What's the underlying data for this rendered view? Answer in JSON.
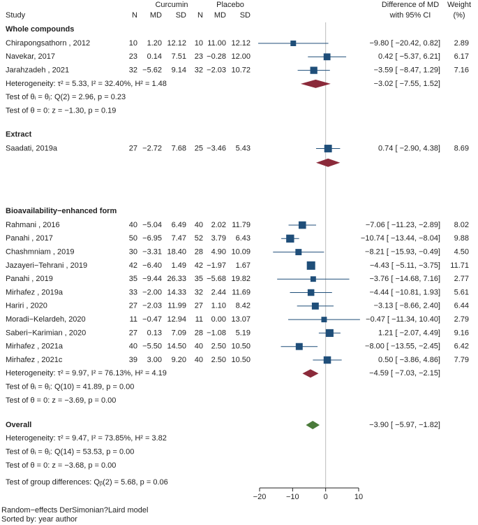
{
  "chart_data": {
    "type": "forest",
    "columns": {
      "study": "Study",
      "group1": "Curcumin",
      "group2": "Placebo",
      "n": "N",
      "md": "MD",
      "sd": "SD",
      "effect_header_1": "Difference of MD",
      "effect_header_2": "with 95% CI",
      "weight_header_1": "Weight",
      "weight_header_2": "(%)"
    },
    "axis": {
      "xlim": [
        -20,
        10
      ],
      "ticks": [
        -20,
        -10,
        0,
        10
      ],
      "tick_labels": [
        "−20",
        "−10",
        "0",
        "10"
      ],
      "null_line": 0
    },
    "colors": {
      "study": "#1f4e79",
      "subgroup": "#8b2a3a",
      "overall": "#4a7a3a",
      "ci": "#1f4e79",
      "null_line": "#bbbbbb"
    },
    "groups": [
      {
        "name": "Whole compounds",
        "studies": [
          {
            "name": "Chirapongsathorn , 2012",
            "n1": "10",
            "md1": "1.20",
            "sd1": "12.12",
            "n2": "10",
            "md2": "11.00",
            "sd2": "12.12",
            "effect": -9.8,
            "lo": -20.42,
            "hi": 0.82,
            "ci_text": "−9.80 [ −20.42,   0.82]",
            "weight": 2.89,
            "weight_text": "2.89"
          },
          {
            "name": "Navekar, 2017",
            "n1": "23",
            "md1": "0.14",
            "sd1": "7.51",
            "n2": "23",
            "md2": "−0.28",
            "sd2": "12.00",
            "effect": 0.42,
            "lo": -5.37,
            "hi": 6.21,
            "ci_text": "0.42 [  −5.37,   6.21]",
            "weight": 6.17,
            "weight_text": "6.17"
          },
          {
            "name": "Jarahzadeh , 2021",
            "n1": "32",
            "md1": "−5.62",
            "sd1": "9.14",
            "n2": "32",
            "md2": "−2.03",
            "sd2": "10.72",
            "effect": -3.59,
            "lo": -8.47,
            "hi": 1.29,
            "ci_text": "−3.59 [  −8.47,   1.29]",
            "weight": 7.16,
            "weight_text": "7.16"
          }
        ],
        "heterogeneity": {
          "label": "Heterogeneity: τ² = 5.33, I² = 32.40%, H² = 1.48",
          "effect": -3.02,
          "lo": -7.55,
          "hi": 1.52,
          "ci_text": "−3.02 [  −7.55,   1.52]"
        },
        "test_q": "Test of θᵢ = θⱼ: Q(2) = 2.96, p = 0.23",
        "test_z": "Test of θ = 0: z = −1.30, p = 0.19"
      },
      {
        "name": "Extract",
        "studies": [
          {
            "name": "Saadati,  2019a",
            "n1": "27",
            "md1": "−2.72",
            "sd1": "7.68",
            "n2": "25",
            "md2": "−3.46",
            "sd2": "5.43",
            "effect": 0.74,
            "lo": -2.9,
            "hi": 4.38,
            "ci_text": "0.74 [  −2.90,   4.38]",
            "weight": 8.69,
            "weight_text": "8.69"
          }
        ],
        "summary": {
          "effect": 0.74,
          "lo": -2.9,
          "hi": 4.38
        }
      },
      {
        "name": "Bioavailability−enhanced form",
        "studies": [
          {
            "name": "Rahmani , 2016",
            "n1": "40",
            "md1": "−5.04",
            "sd1": "6.49",
            "n2": "40",
            "md2": "2.02",
            "sd2": "11.79",
            "effect": -7.06,
            "lo": -11.23,
            "hi": -2.89,
            "ci_text": "−7.06 [ −11.23,  −2.89]",
            "weight": 8.02,
            "weight_text": "8.02"
          },
          {
            "name": "Panahi , 2017",
            "n1": "50",
            "md1": "−6.95",
            "sd1": "7.47",
            "n2": "52",
            "md2": "3.79",
            "sd2": "6.43",
            "effect": -10.74,
            "lo": -13.44,
            "hi": -8.04,
            "ci_text": "−10.74 [ −13.44,  −8.04]",
            "weight": 9.88,
            "weight_text": "9.88"
          },
          {
            "name": "Chashmniam , 2019",
            "n1": "30",
            "md1": "−3.31",
            "sd1": "18.40",
            "n2": "28",
            "md2": "4.90",
            "sd2": "10.09",
            "effect": -8.21,
            "lo": -15.93,
            "hi": -0.49,
            "ci_text": "−8.21 [ −15.93,  −0.49]",
            "weight": 4.5,
            "weight_text": "4.50"
          },
          {
            "name": "Jazayeri−Tehrani , 2019",
            "n1": "42",
            "md1": "−6.40",
            "sd1": "1.49",
            "n2": "42",
            "md2": "−1.97",
            "sd2": "1.67",
            "effect": -4.43,
            "lo": -5.11,
            "hi": -3.75,
            "ci_text": "−4.43 [  −5.11,  −3.75]",
            "weight": 11.71,
            "weight_text": "11.71"
          },
          {
            "name": "Panahi , 2019",
            "n1": "35",
            "md1": "−9.44",
            "sd1": "26.33",
            "n2": "35",
            "md2": "−5.68",
            "sd2": "19.82",
            "effect": -3.76,
            "lo": -14.68,
            "hi": 7.16,
            "ci_text": "−3.76 [ −14.68,   7.16]",
            "weight": 2.77,
            "weight_text": "2.77"
          },
          {
            "name": "Mirhafez , 2019a",
            "n1": "33",
            "md1": "−2.00",
            "sd1": "14.33",
            "n2": "32",
            "md2": "2.44",
            "sd2": "11.69",
            "effect": -4.44,
            "lo": -10.81,
            "hi": 1.93,
            "ci_text": "−4.44 [ −10.81,   1.93]",
            "weight": 5.61,
            "weight_text": "5.61"
          },
          {
            "name": "Hariri , 2020",
            "n1": "27",
            "md1": "−2.03",
            "sd1": "11.99",
            "n2": "27",
            "md2": "1.10",
            "sd2": "8.42",
            "effect": -3.13,
            "lo": -8.66,
            "hi": 2.4,
            "ci_text": "−3.13 [  −8.66,   2.40]",
            "weight": 6.44,
            "weight_text": "6.44"
          },
          {
            "name": "Moradi−Kelardeh, 2020",
            "n1": "11",
            "md1": "−0.47",
            "sd1": "12.94",
            "n2": "11",
            "md2": "0.00",
            "sd2": "13.07",
            "effect": -0.47,
            "lo": -11.34,
            "hi": 10.4,
            "ci_text": "−0.47 [ −11.34,  10.40]",
            "weight": 2.79,
            "weight_text": "2.79"
          },
          {
            "name": "Saberi−Karimian , 2020",
            "n1": "27",
            "md1": "0.13",
            "sd1": "7.09",
            "n2": "28",
            "md2": "−1.08",
            "sd2": "5.19",
            "effect": 1.21,
            "lo": -2.07,
            "hi": 4.49,
            "ci_text": "1.21 [  −2.07,   4.49]",
            "weight": 9.16,
            "weight_text": "9.16"
          },
          {
            "name": "Mirhafez , 2021a",
            "n1": "40",
            "md1": "−5.50",
            "sd1": "14.50",
            "n2": "40",
            "md2": "2.50",
            "sd2": "10.50",
            "effect": -8.0,
            "lo": -13.55,
            "hi": -2.45,
            "ci_text": "−8.00 [ −13.55,  −2.45]",
            "weight": 6.42,
            "weight_text": "6.42"
          },
          {
            "name": "Mirhafez , 2021c",
            "n1": "39",
            "md1": "3.00",
            "sd1": "9.20",
            "n2": "40",
            "md2": "2.50",
            "sd2": "10.50",
            "effect": 0.5,
            "lo": -3.86,
            "hi": 4.86,
            "ci_text": "0.50 [  −3.86,   4.86]",
            "weight": 7.79,
            "weight_text": "7.79"
          }
        ],
        "heterogeneity": {
          "label": "Heterogeneity: τ² = 9.97, I² = 76.13%, H² = 4.19",
          "effect": -4.59,
          "lo": -7.03,
          "hi": -2.15,
          "ci_text": "−4.59 [  −7.03,  −2.15]"
        },
        "test_q": "Test of θᵢ = θⱼ: Q(10) = 41.89, p = 0.00",
        "test_z": "Test of θ = 0: z = −3.69, p = 0.00"
      }
    ],
    "overall": {
      "name": "Overall",
      "effect": -3.9,
      "lo": -5.97,
      "hi": -1.82,
      "ci_text": "−3.90 [  −5.97,  −1.82]",
      "heterogeneity": "Heterogeneity: τ² = 9.47, I² = 73.85%, H² = 3.82",
      "test_q": "Test of θᵢ = θⱼ: Q(14) = 53.53, p = 0.00",
      "test_z": "Test of θ = 0: z = −3.68, p = 0.00"
    },
    "group_test": "Test of group differences: Qᵦ(2) = 5.68, p = 0.06",
    "footnote_1": "Random−effects DerSimonian?Laird model",
    "footnote_2": "Sorted by: year author"
  }
}
